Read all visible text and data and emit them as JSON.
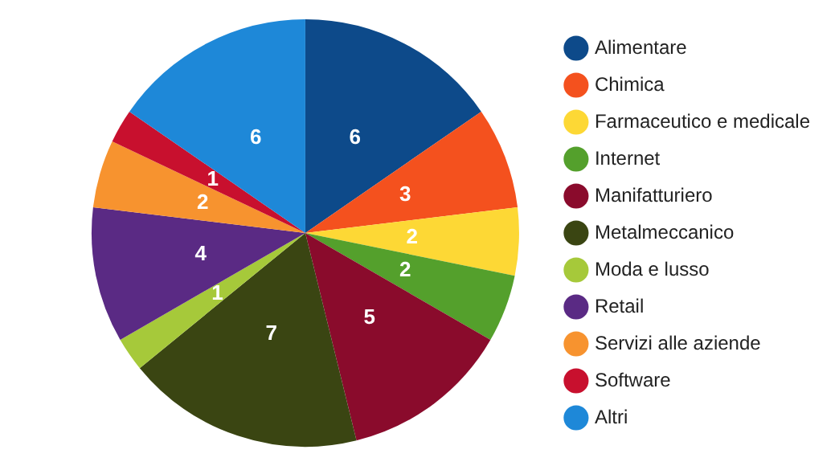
{
  "chart_data": {
    "type": "pie",
    "categories": [
      "Alimentare",
      "Chimica",
      "Farmaceutico e medicale",
      "Internet",
      "Manifatturiero",
      "Metalmeccanico",
      "Moda e lusso",
      "Retail",
      "Servizi alle aziende",
      "Software",
      "Altri"
    ],
    "values": [
      6,
      3,
      2,
      2,
      5,
      7,
      1,
      4,
      2,
      1,
      6
    ],
    "colors": [
      "#0d4a8a",
      "#f4511e",
      "#fdd835",
      "#54a02c",
      "#8a0b2c",
      "#3a4512",
      "#a6c93a",
      "#5a2a84",
      "#f7932f",
      "#c8102e",
      "#1e88d8"
    ],
    "data_labels": true,
    "legend": "right"
  }
}
